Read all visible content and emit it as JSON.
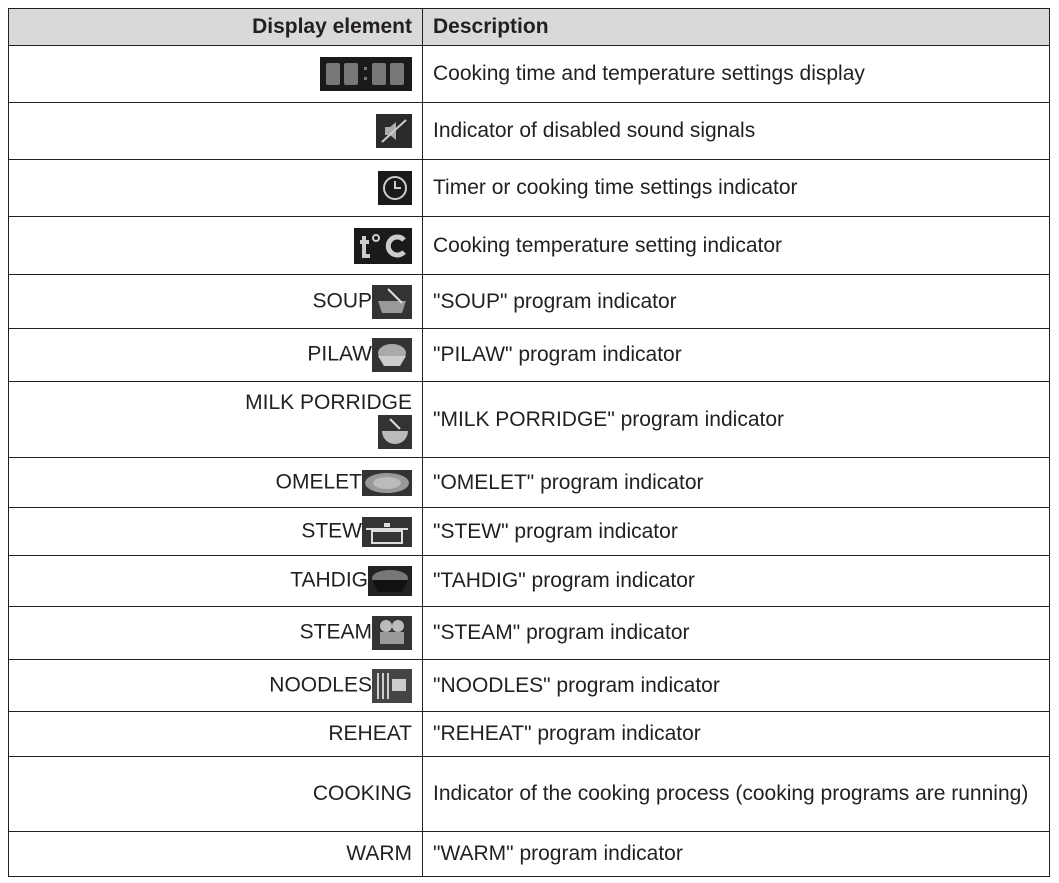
{
  "header": {
    "element": "Display element",
    "description": "Description"
  },
  "rows": [
    {
      "description": "Cooking time and temperature settings display"
    },
    {
      "description": "Indicator of disabled sound signals"
    },
    {
      "description": "Timer or cooking time settings indicator"
    },
    {
      "description": "Cooking temperature setting indicator"
    },
    {
      "label": "SOUP",
      "description": "\"SOUP\" program indicator"
    },
    {
      "label": "PILAW",
      "description": "\"PILAW\" program indicator"
    },
    {
      "label": "MILK PORRIDGE",
      "description": "\"MILK PORRIDGE\" program indicator"
    },
    {
      "label": "OMELET",
      "description": "\"OMELET\" program indicator"
    },
    {
      "label": "STEW",
      "description": "\"STEW\" program indicator"
    },
    {
      "label": "TAHDIG",
      "description": "\"TAHDIG\" program indicator"
    },
    {
      "label": "STEAM",
      "description": "\"STEAM\" program indicator"
    },
    {
      "label": "NOODLES",
      "description": "\"NOODLES\" program indicator"
    },
    {
      "label": "REHEAT",
      "description": "\"REHEAT\" program indicator"
    },
    {
      "label": "COOKING",
      "description": "Indicator of the cooking process (cooking programs are running)"
    },
    {
      "label": "WARM",
      "description": "\"WARM\" program indicator"
    }
  ]
}
